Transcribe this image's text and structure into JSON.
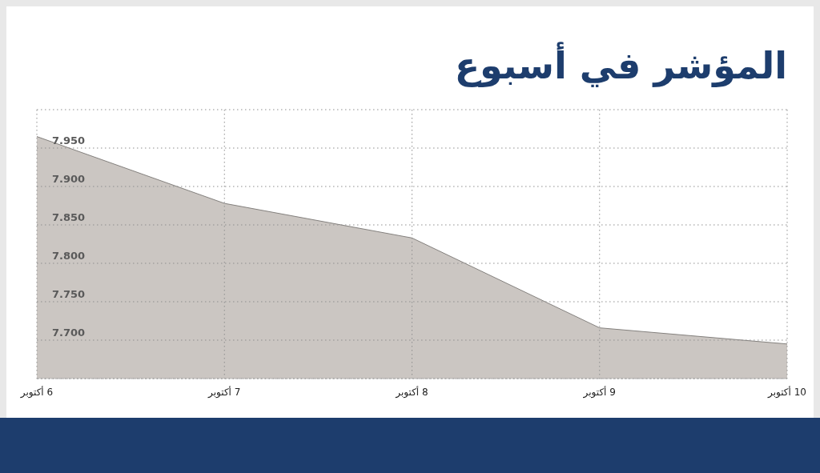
{
  "chart_data": {
    "type": "area",
    "title": "المؤشر في أسبوع",
    "categories": [
      "6 أكتوبر",
      "7 أكتوبر",
      "8 أكتوبر",
      "9 أكتوبر",
      "10 أكتوبر"
    ],
    "values": [
      7.965,
      7.878,
      7.833,
      7.716,
      7.695
    ],
    "color": "#cbc6c2",
    "ylim": [
      7.65,
      8.0
    ],
    "yticks": [
      {
        "value": 7.65,
        "label": null
      },
      {
        "value": 7.7,
        "label": "7.700"
      },
      {
        "value": 7.75,
        "label": "7.750"
      },
      {
        "value": 7.8,
        "label": "7.800"
      },
      {
        "value": 7.85,
        "label": "7.850"
      },
      {
        "value": 7.9,
        "label": "7.900"
      },
      {
        "value": 7.95,
        "label": "7.950"
      },
      {
        "value": 8.0,
        "label": null
      }
    ],
    "grid": true
  }
}
